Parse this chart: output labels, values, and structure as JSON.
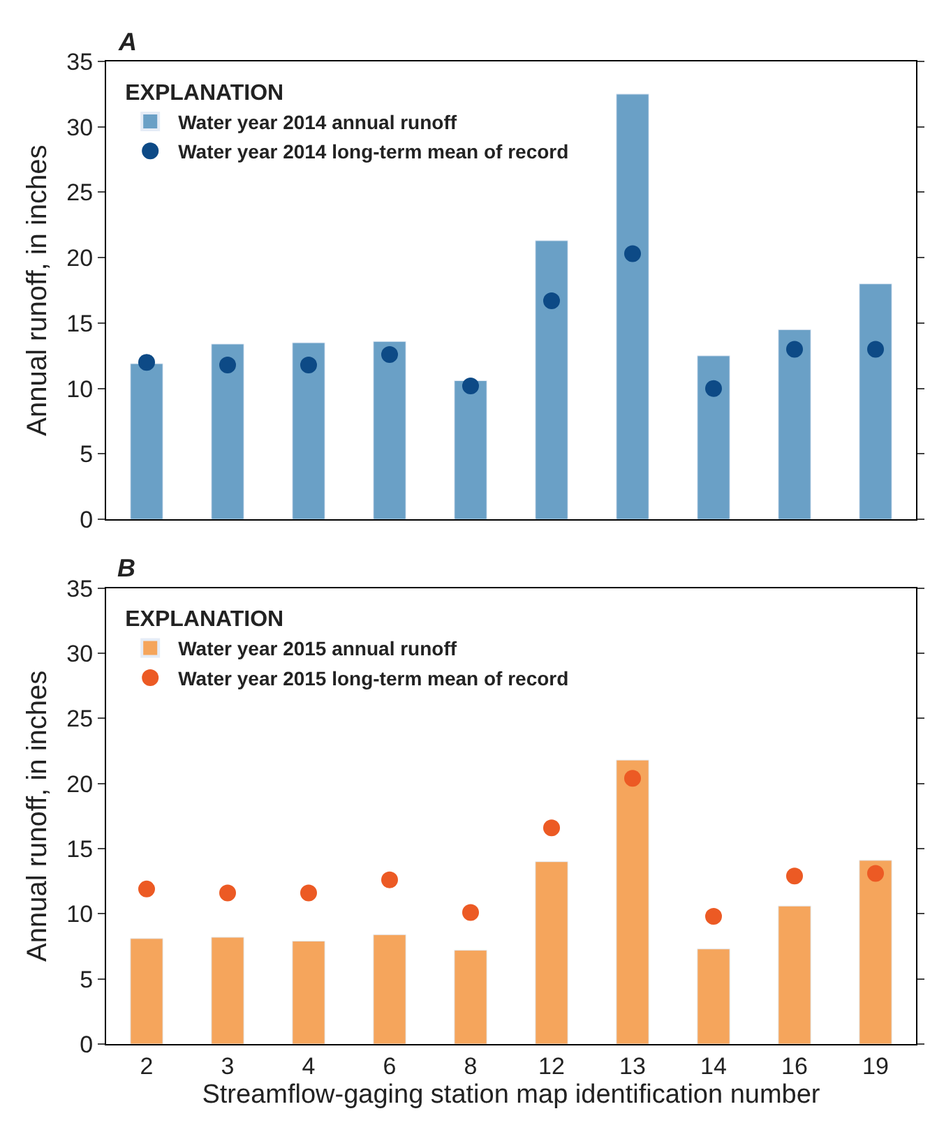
{
  "chart_data": [
    {
      "type": "bar",
      "title": "A",
      "ylabel": "Annual runoff, in inches",
      "legend_title": "EXPLANATION",
      "legend": "top left",
      "tick_labels": "y",
      "categories": [
        "2",
        "3",
        "4",
        "6",
        "8",
        "12",
        "13",
        "14",
        "16",
        "19"
      ],
      "ylim": [
        0,
        35
      ],
      "yticks": [
        0,
        5,
        10,
        15,
        20,
        25,
        30,
        35
      ],
      "series": [
        {
          "name": "Water year 2014 annual runoff",
          "color": "#6aa0c6",
          "values": [
            11.9,
            13.4,
            13.5,
            13.6,
            10.6,
            21.3,
            32.5,
            12.5,
            14.5,
            18.0
          ]
        },
        {
          "type": "scatter",
          "marker": "circle",
          "name": "Water year 2014 long-term mean of record",
          "color": "#0d4a86",
          "x": [
            "2",
            "3",
            "4",
            "6",
            "8",
            "12",
            "13",
            "14",
            "16",
            "19"
          ],
          "values": [
            12.0,
            11.8,
            11.8,
            12.6,
            10.2,
            16.7,
            20.3,
            10.0,
            13.0,
            13.0
          ]
        }
      ]
    },
    {
      "type": "bar",
      "title": "B",
      "xlabel": "Streamflow-gaging station map identification number",
      "ylabel": "Annual runoff, in inches",
      "legend_title": "EXPLANATION",
      "legend": "top left",
      "categories": [
        "2",
        "3",
        "4",
        "6",
        "8",
        "12",
        "13",
        "14",
        "16",
        "19"
      ],
      "ylim": [
        0,
        35
      ],
      "yticks": [
        0,
        5,
        10,
        15,
        20,
        25,
        30,
        35
      ],
      "series": [
        {
          "name": "Water year 2015 annual runoff",
          "color": "#f5a55c",
          "values": [
            8.1,
            8.2,
            7.9,
            8.4,
            7.2,
            14.0,
            21.8,
            7.3,
            10.6,
            14.1
          ]
        },
        {
          "type": "scatter",
          "marker": "circle",
          "name": "Water year 2015 long-term mean of record",
          "color": "#ec5a24",
          "x": [
            "2",
            "3",
            "4",
            "6",
            "8",
            "12",
            "13",
            "14",
            "16",
            "19"
          ],
          "values": [
            11.9,
            11.6,
            11.6,
            12.6,
            10.1,
            16.6,
            20.4,
            9.8,
            12.9,
            13.1
          ]
        }
      ]
    }
  ]
}
